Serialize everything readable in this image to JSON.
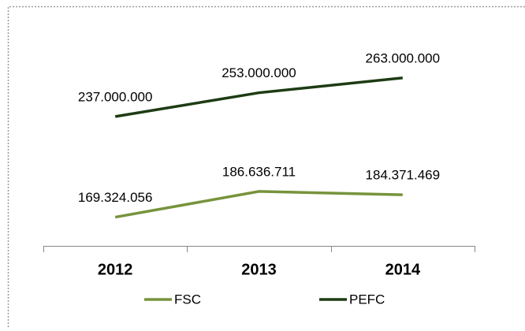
{
  "chart_data": {
    "type": "line",
    "categories": [
      "2012",
      "2013",
      "2014"
    ],
    "series": [
      {
        "name": "FSC",
        "color": "#77933c",
        "values": [
          169324056,
          186636711,
          184371469
        ],
        "value_labels": [
          "169.324.056",
          "186.636.711",
          "184.371.469"
        ]
      },
      {
        "name": "PEFC",
        "color": "#1e3b14",
        "values": [
          237000000,
          253000000,
          263000000
        ],
        "value_labels": [
          "237.000.000",
          "253.000.000",
          "263.000.000"
        ]
      }
    ],
    "ylim": [
      150000000,
      300000000
    ]
  }
}
